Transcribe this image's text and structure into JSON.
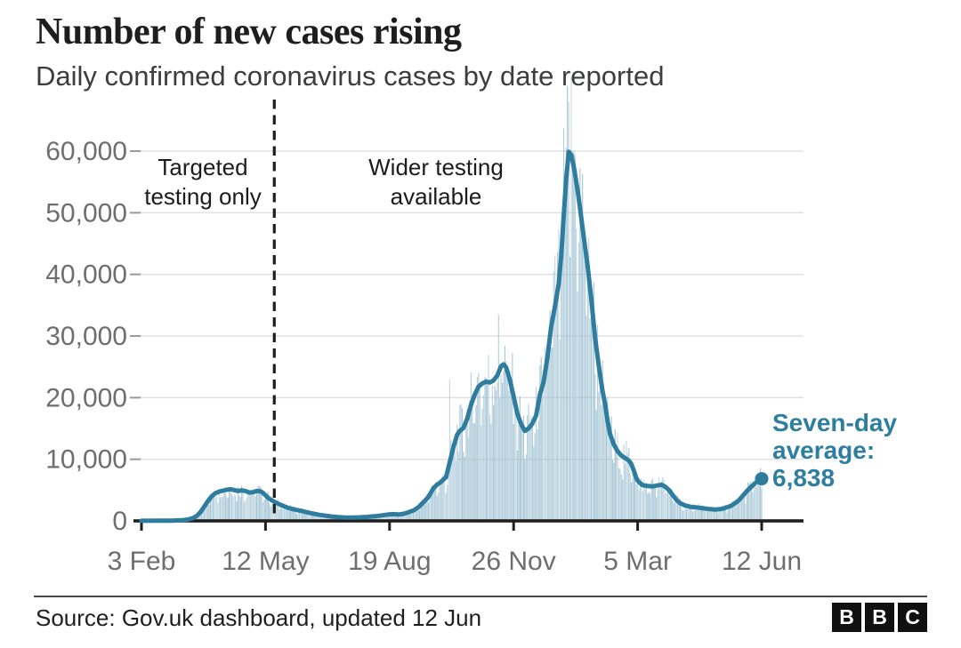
{
  "header": {
    "title": "Number of new cases rising",
    "subtitle": "Daily confirmed coronavirus cases by date reported"
  },
  "chart_data": {
    "type": "bar+line",
    "title": "Number of new cases rising",
    "subtitle": "Daily confirmed coronavirus cases by date reported",
    "xlabel": "",
    "ylabel": "",
    "x_axis": {
      "start_label": "3 Feb",
      "end_label": "12 Jun",
      "total_days": 495,
      "tick_days": [
        0,
        99,
        198,
        297,
        396,
        495
      ],
      "tick_labels": [
        "3 Feb",
        "12 May",
        "19 Aug",
        "26 Nov",
        "5 Mar",
        "12 Jun"
      ]
    },
    "y_axis": {
      "ticks": [
        0,
        10000,
        20000,
        30000,
        40000,
        50000,
        60000
      ],
      "tick_labels": [
        "0",
        "10,000",
        "20,000",
        "30,000",
        "40,000",
        "50,000",
        "60,000"
      ],
      "ylim": [
        0,
        68000
      ],
      "grid": true
    },
    "annotations": {
      "divider_day": 106,
      "left_label": "Targeted\ntesting only",
      "right_label": "Wider testing\navailable",
      "series_label": "Seven-day\naverage:",
      "final_value_label": "6,838",
      "final_value": 6838
    },
    "series": [
      {
        "name": "Daily confirmed cases",
        "type": "bar",
        "color": "#9cc0d1",
        "derived_from": "seven_day_average",
        "noise": {
          "base": 0.74,
          "amp": 0.52,
          "weekend_factor": 0.8,
          "weekday_factor": 1.03
        },
        "outliers": {
          "246": 22900,
          "285": 33500,
          "339": 60500,
          "341": 68000
        }
      },
      {
        "name": "Seven-day average",
        "type": "line",
        "color": "#2e7d9e",
        "end_dot": true,
        "points": [
          [
            0,
            15
          ],
          [
            12,
            25
          ],
          [
            24,
            45
          ],
          [
            32,
            100
          ],
          [
            37,
            220
          ],
          [
            41,
            450
          ],
          [
            44,
            800
          ],
          [
            47,
            1400
          ],
          [
            50,
            2300
          ],
          [
            53,
            3200
          ],
          [
            56,
            4000
          ],
          [
            59,
            4500
          ],
          [
            62,
            4750
          ],
          [
            65,
            4900
          ],
          [
            68,
            5050
          ],
          [
            71,
            5150
          ],
          [
            74,
            5000
          ],
          [
            77,
            4850
          ],
          [
            80,
            4950
          ],
          [
            83,
            4850
          ],
          [
            86,
            4600
          ],
          [
            89,
            4650
          ],
          [
            92,
            4850
          ],
          [
            95,
            4800
          ],
          [
            97,
            4550
          ],
          [
            99,
            4150
          ],
          [
            101,
            3750
          ],
          [
            104,
            3350
          ],
          [
            107,
            3000
          ],
          [
            110,
            2700
          ],
          [
            114,
            2350
          ],
          [
            118,
            2050
          ],
          [
            122,
            1850
          ],
          [
            127,
            1650
          ],
          [
            132,
            1400
          ],
          [
            137,
            1180
          ],
          [
            142,
            980
          ],
          [
            147,
            830
          ],
          [
            152,
            700
          ],
          [
            157,
            610
          ],
          [
            162,
            565
          ],
          [
            168,
            545
          ],
          [
            174,
            575
          ],
          [
            180,
            645
          ],
          [
            186,
            745
          ],
          [
            192,
            890
          ],
          [
            197,
            1040
          ],
          [
            201,
            1090
          ],
          [
            205,
            1040
          ],
          [
            209,
            1140
          ],
          [
            213,
            1390
          ],
          [
            217,
            1690
          ],
          [
            221,
            2200
          ],
          [
            225,
            3000
          ],
          [
            229,
            3900
          ],
          [
            233,
            5300
          ],
          [
            236,
            5900
          ],
          [
            239,
            6300
          ],
          [
            241,
            6700
          ],
          [
            243,
            7050
          ],
          [
            246,
            9500
          ],
          [
            249,
            12000
          ],
          [
            252,
            14000
          ],
          [
            254,
            14600
          ],
          [
            257,
            15100
          ],
          [
            260,
            16600
          ],
          [
            263,
            18800
          ],
          [
            266,
            20500
          ],
          [
            269,
            21800
          ],
          [
            272,
            22300
          ],
          [
            275,
            22600
          ],
          [
            278,
            22450
          ],
          [
            281,
            22800
          ],
          [
            284,
            23600
          ],
          [
            287,
            25100
          ],
          [
            289,
            25400
          ],
          [
            291,
            24900
          ],
          [
            294,
            22900
          ],
          [
            297,
            20200
          ],
          [
            300,
            17400
          ],
          [
            303,
            15700
          ],
          [
            306,
            14600
          ],
          [
            309,
            15000
          ],
          [
            312,
            15800
          ],
          [
            315,
            17100
          ],
          [
            318,
            20500
          ],
          [
            321,
            22600
          ],
          [
            324,
            26500
          ],
          [
            327,
            31500
          ],
          [
            330,
            34800
          ],
          [
            333,
            38500
          ],
          [
            335,
            43000
          ],
          [
            337,
            49500
          ],
          [
            339,
            55500
          ],
          [
            341,
            59900
          ],
          [
            343,
            59400
          ],
          [
            345,
            57500
          ],
          [
            348,
            53800
          ],
          [
            350,
            50800
          ],
          [
            353,
            46000
          ],
          [
            356,
            41500
          ],
          [
            359,
            36000
          ],
          [
            362,
            29800
          ],
          [
            365,
            25200
          ],
          [
            368,
            21000
          ],
          [
            370,
            19000
          ],
          [
            372,
            16200
          ],
          [
            374,
            14100
          ],
          [
            377,
            12400
          ],
          [
            380,
            11300
          ],
          [
            383,
            10600
          ],
          [
            386,
            10200
          ],
          [
            389,
            9800
          ],
          [
            391,
            9200
          ],
          [
            393,
            8100
          ],
          [
            395,
            6900
          ],
          [
            397,
            6300
          ],
          [
            400,
            5800
          ],
          [
            404,
            5650
          ],
          [
            408,
            5600
          ],
          [
            412,
            5750
          ],
          [
            415,
            5850
          ],
          [
            418,
            5550
          ],
          [
            421,
            5000
          ],
          [
            424,
            4200
          ],
          [
            427,
            3400
          ],
          [
            430,
            2850
          ],
          [
            434,
            2500
          ],
          [
            438,
            2300
          ],
          [
            442,
            2200
          ],
          [
            446,
            2100
          ],
          [
            450,
            2000
          ],
          [
            454,
            1900
          ],
          [
            458,
            1850
          ],
          [
            462,
            1900
          ],
          [
            465,
            2050
          ],
          [
            468,
            2250
          ],
          [
            471,
            2500
          ],
          [
            474,
            2900
          ],
          [
            477,
            3400
          ],
          [
            480,
            4100
          ],
          [
            483,
            4800
          ],
          [
            486,
            5400
          ],
          [
            489,
            6000
          ],
          [
            492,
            6450
          ],
          [
            495,
            6838
          ]
        ]
      }
    ],
    "legend_position": "none"
  },
  "footer": {
    "source": "Source: Gov.uk dashboard, updated 12 Jun",
    "logo_letters": [
      "B",
      "B",
      "C"
    ]
  },
  "colors": {
    "bar": "#9cc0d1",
    "line": "#2e7d9e",
    "annotation_text": "#2e7e9f",
    "axis_label": "#6e6e6e",
    "gridline": "#e2e2e2",
    "axis_line": "#1f1f1f",
    "dashed_line": "#1d1d1d"
  }
}
